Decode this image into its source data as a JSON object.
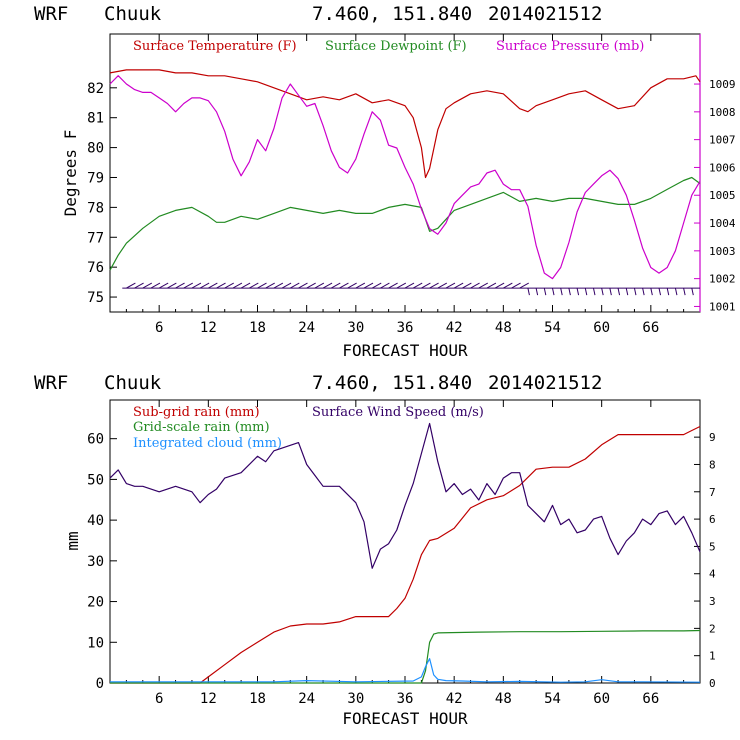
{
  "chart_data": [
    {
      "type": "line",
      "header": {
        "model": "WRF",
        "station": "Chuuk",
        "coords": "7.460, 151.840",
        "init": "2014021512"
      },
      "xlabel": "FORECAST HOUR",
      "ylabel": "Degrees F",
      "xlim": [
        0,
        72
      ],
      "ylim": [
        74.5,
        83.8
      ],
      "y2lim": [
        1000.8,
        1010.8
      ],
      "x_ticks": [
        "6",
        "12",
        "18",
        "24",
        "30",
        "36",
        "42",
        "48",
        "54",
        "60",
        "66"
      ],
      "y_ticks": [
        "75",
        "76",
        "77",
        "78",
        "79",
        "80",
        "81",
        "82"
      ],
      "y2_ticks": [
        "1001",
        "1002",
        "1003",
        "1004",
        "1005",
        "1006",
        "1007",
        "1008",
        "1009"
      ],
      "series": [
        {
          "name": "Surface Temperature (F)",
          "color": "#c00000",
          "axis": "left",
          "x": [
            0,
            2,
            4,
            6,
            8,
            10,
            12,
            14,
            16,
            18,
            20,
            22,
            24,
            26,
            28,
            30,
            32,
            34,
            36,
            37,
            38,
            38.5,
            39,
            40,
            41,
            42,
            44,
            46,
            48,
            50,
            51,
            52,
            54,
            56,
            58,
            60,
            62,
            64,
            66,
            68,
            70,
            71.5,
            72
          ],
          "y": [
            82.5,
            82.6,
            82.6,
            82.6,
            82.5,
            82.5,
            82.4,
            82.4,
            82.3,
            82.2,
            82.0,
            81.8,
            81.6,
            81.7,
            81.6,
            81.8,
            81.5,
            81.6,
            81.4,
            81.0,
            80.0,
            79.0,
            79.3,
            80.6,
            81.3,
            81.5,
            81.8,
            81.9,
            81.8,
            81.3,
            81.2,
            81.4,
            81.6,
            81.8,
            81.9,
            81.6,
            81.3,
            81.4,
            82.0,
            82.3,
            82.3,
            82.4,
            82.2
          ]
        },
        {
          "name": "Surface Dewpoint (F)",
          "color": "#228b22",
          "axis": "left",
          "x": [
            0,
            1,
            2,
            4,
            6,
            8,
            10,
            12,
            13,
            14,
            16,
            18,
            20,
            22,
            24,
            26,
            28,
            30,
            32,
            34,
            36,
            38,
            38.5,
            39,
            40,
            41,
            42,
            44,
            46,
            48,
            50,
            52,
            54,
            56,
            58,
            60,
            62,
            64,
            66,
            68,
            70,
            71,
            72
          ],
          "y": [
            75.9,
            76.4,
            76.8,
            77.3,
            77.7,
            77.9,
            78.0,
            77.7,
            77.5,
            77.5,
            77.7,
            77.6,
            77.8,
            78.0,
            77.9,
            77.8,
            77.9,
            77.8,
            77.8,
            78.0,
            78.1,
            78.0,
            77.6,
            77.2,
            77.3,
            77.6,
            77.9,
            78.1,
            78.3,
            78.5,
            78.2,
            78.3,
            78.2,
            78.3,
            78.3,
            78.2,
            78.1,
            78.1,
            78.3,
            78.6,
            78.9,
            79.0,
            78.8
          ]
        },
        {
          "name": "Surface Pressure (mb)",
          "color": "#cc00cc",
          "axis": "right",
          "x": [
            0,
            1,
            2,
            3,
            4,
            5,
            6,
            7,
            8,
            9,
            10,
            11,
            12,
            13,
            14,
            15,
            16,
            17,
            18,
            19,
            20,
            21,
            22,
            23,
            24,
            25,
            26,
            27,
            28,
            29,
            30,
            31,
            32,
            33,
            34,
            35,
            36,
            37,
            38,
            39,
            40,
            41,
            42,
            43,
            44,
            45,
            46,
            47,
            48,
            49,
            50,
            51,
            52,
            53,
            54,
            55,
            56,
            57,
            58,
            59,
            60,
            61,
            62,
            63,
            64,
            65,
            66,
            67,
            68,
            69,
            70,
            71,
            72
          ],
          "y": [
            1009.0,
            1009.3,
            1009.0,
            1008.8,
            1008.7,
            1008.7,
            1008.5,
            1008.3,
            1008.0,
            1008.3,
            1008.5,
            1008.5,
            1008.4,
            1008.0,
            1007.3,
            1006.3,
            1005.7,
            1006.2,
            1007.0,
            1006.6,
            1007.4,
            1008.5,
            1009.0,
            1008.6,
            1008.2,
            1008.3,
            1007.5,
            1006.6,
            1006.0,
            1005.8,
            1006.3,
            1007.2,
            1008.0,
            1007.7,
            1006.8,
            1006.7,
            1006.0,
            1005.4,
            1004.5,
            1003.8,
            1003.6,
            1004.0,
            1004.7,
            1005.0,
            1005.3,
            1005.4,
            1005.8,
            1005.9,
            1005.4,
            1005.2,
            1005.2,
            1004.6,
            1003.2,
            1002.2,
            1002.0,
            1002.4,
            1003.3,
            1004.4,
            1005.1,
            1005.4,
            1005.7,
            1005.9,
            1005.6,
            1005.0,
            1004.1,
            1003.1,
            1002.4,
            1002.2,
            1002.4,
            1003.0,
            1004.0,
            1005.0,
            1005.5
          ]
        }
      ],
      "wind_barbs": {
        "color": "#330066",
        "y_level": 75.3
      }
    },
    {
      "type": "line",
      "header": {
        "model": "WRF",
        "station": "Chuuk",
        "coords": "7.460, 151.840",
        "init": "2014021512"
      },
      "xlabel": "FORECAST HOUR",
      "ylabel": "mm",
      "xlim": [
        0,
        72
      ],
      "ylim": [
        0,
        69.5
      ],
      "y2lim": [
        0,
        10.36
      ],
      "x_ticks": [
        "6",
        "12",
        "18",
        "24",
        "30",
        "36",
        "42",
        "48",
        "54",
        "60",
        "66"
      ],
      "y_ticks": [
        "0",
        "10",
        "20",
        "30",
        "40",
        "50",
        "60"
      ],
      "y2_ticks": [
        "0",
        "1",
        "2",
        "3",
        "4",
        "5",
        "6",
        "7",
        "8",
        "9"
      ],
      "series": [
        {
          "name": "Sub-grid rain (mm)",
          "color": "#c00000",
          "axis": "left",
          "x": [
            0,
            11,
            12,
            14,
            16,
            18,
            20,
            22,
            24,
            26,
            28,
            30,
            32,
            34,
            35,
            36,
            37,
            38,
            39,
            40,
            42,
            44,
            46,
            48,
            50,
            52,
            54,
            56,
            58,
            60,
            62,
            64,
            66,
            68,
            70,
            71,
            72
          ],
          "y": [
            0,
            0,
            1.5,
            4.5,
            7.5,
            10,
            12.5,
            14,
            14.5,
            14.5,
            15,
            16.3,
            16.3,
            16.3,
            18.3,
            20.8,
            25.5,
            31.5,
            35,
            35.5,
            38,
            43,
            45,
            46,
            48.5,
            52.5,
            53,
            53,
            55,
            58.5,
            61,
            61,
            61,
            61,
            61,
            62,
            63
          ]
        },
        {
          "name": "Grid-scale rain (mm)",
          "color": "#228b22",
          "axis": "left",
          "x": [
            0,
            38,
            38.5,
            39,
            39.5,
            40,
            45,
            50,
            55,
            60,
            65,
            70,
            72
          ],
          "y": [
            0,
            0,
            3,
            10,
            12,
            12.3,
            12.5,
            12.6,
            12.6,
            12.7,
            12.8,
            12.8,
            12.9
          ]
        },
        {
          "name": "Integrated cloud (mm)",
          "color": "#1e90ff",
          "axis": "left",
          "x": [
            0,
            20,
            24,
            30,
            37,
            38,
            38.5,
            39,
            39.5,
            40,
            41,
            43,
            46,
            50,
            55,
            58,
            60,
            62,
            65,
            72
          ],
          "y": [
            0.3,
            0.3,
            0.6,
            0.3,
            0.5,
            1.5,
            4,
            6,
            2,
            0.9,
            0.6,
            0.5,
            0.3,
            0.4,
            0.2,
            0.3,
            0.8,
            0.3,
            0.3,
            0.2
          ]
        },
        {
          "name": "Surface Wind Speed (m/s)",
          "color": "#330066",
          "axis": "right",
          "x": [
            0,
            1,
            2,
            3,
            4,
            6,
            8,
            10,
            11,
            12,
            13,
            14,
            16,
            18,
            19,
            20,
            22,
            23,
            24,
            25,
            26,
            28,
            30,
            31,
            32,
            33,
            34,
            35,
            36,
            37,
            38,
            39,
            40,
            41,
            42,
            43,
            44,
            45,
            46,
            47,
            48,
            49,
            50,
            51,
            52,
            53,
            54,
            55,
            56,
            57,
            58,
            59,
            60,
            61,
            62,
            63,
            64,
            65,
            66,
            67,
            68,
            69,
            70,
            71,
            72
          ],
          "y": [
            7.5,
            7.8,
            7.3,
            7.2,
            7.2,
            7.0,
            7.2,
            7.0,
            6.6,
            6.9,
            7.1,
            7.5,
            7.7,
            8.3,
            8.1,
            8.5,
            8.7,
            8.8,
            8.0,
            7.6,
            7.2,
            7.2,
            6.6,
            5.9,
            4.2,
            4.9,
            5.1,
            5.6,
            6.5,
            7.3,
            8.4,
            9.5,
            8.1,
            7.0,
            7.3,
            6.9,
            7.1,
            6.7,
            7.3,
            6.9,
            7.5,
            7.7,
            7.7,
            6.5,
            6.2,
            5.9,
            6.5,
            5.8,
            6.0,
            5.5,
            5.6,
            6.0,
            6.1,
            5.3,
            4.7,
            5.2,
            5.5,
            6.0,
            5.8,
            6.2,
            6.3,
            5.8,
            6.1,
            5.5,
            4.8
          ]
        }
      ]
    }
  ]
}
